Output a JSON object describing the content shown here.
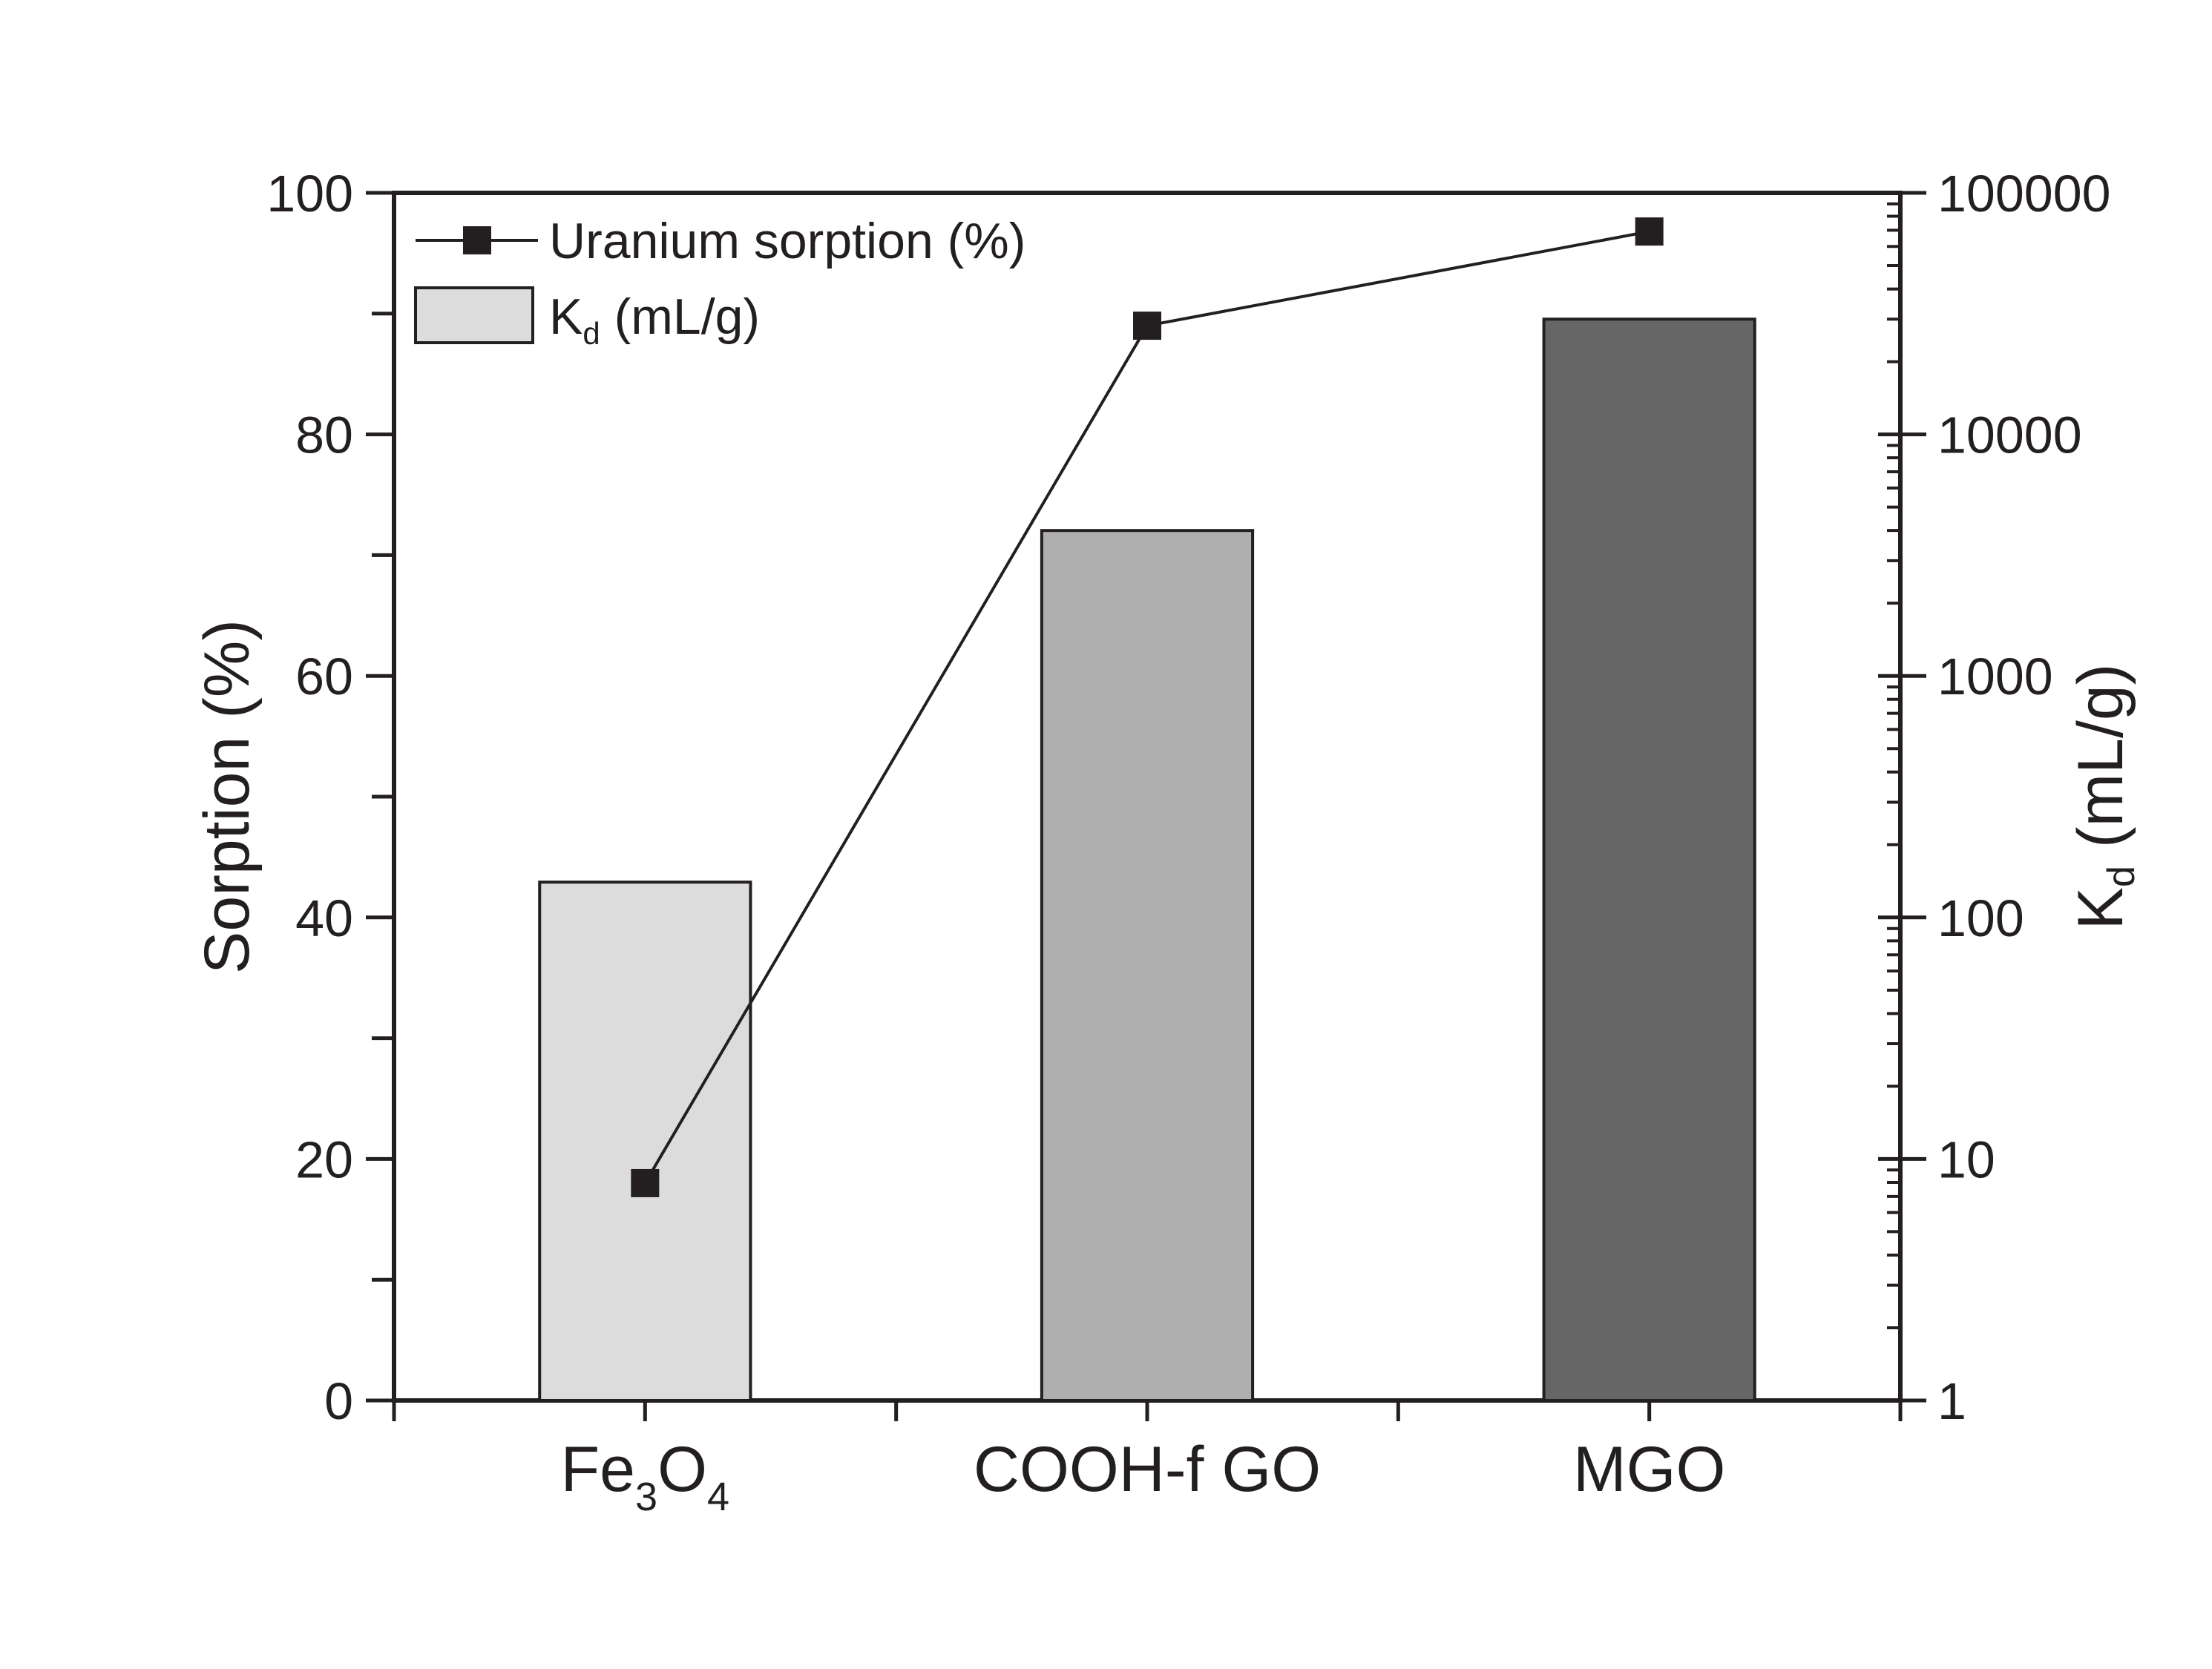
{
  "chart_data": {
    "type": "bar",
    "title": "",
    "xlabel": "",
    "categories": [
      {
        "base": "Fe",
        "sub1": "3",
        "mid": "O",
        "sub2": "4"
      },
      {
        "base": "COOH-f GO"
      },
      {
        "base": "MGO"
      }
    ],
    "series": [
      {
        "name": "K_d (mL/g)",
        "kind": "bar",
        "axis": "right",
        "values": [
          140,
          4000,
          30000
        ],
        "colors": [
          "#dcdcdc",
          "#afafaf",
          "#666666"
        ]
      },
      {
        "name": "Uranium sorption (%)",
        "kind": "line",
        "axis": "left",
        "marker": "square",
        "values": [
          18,
          89,
          96.8
        ]
      }
    ],
    "left_axis": {
      "label": "Sorption (%)",
      "range": [
        0,
        100
      ],
      "ticks": [
        "0",
        "20",
        "40",
        "60",
        "80",
        "100"
      ],
      "tick_values": [
        0,
        20,
        40,
        60,
        80,
        100
      ],
      "minor_step": 10
    },
    "right_axis": {
      "label_main": "K",
      "label_sub": "d",
      "label_rest": " (mL/g)",
      "scale": "log",
      "range": [
        1,
        100000
      ],
      "ticks": [
        "1",
        "10",
        "100",
        "1000",
        "10000",
        "100000"
      ],
      "tick_values": [
        1,
        10,
        100,
        1000,
        10000,
        100000
      ]
    },
    "legend": {
      "position": "top-left",
      "line_label": "Uranium sorption (%)",
      "bar_label_main": "K",
      "bar_label_sub": "d",
      "bar_label_rest": " (mL/g)"
    },
    "colors": {
      "axis": "#231f20",
      "line": "#231f20",
      "marker": "#231f20",
      "legend_swatch": "#dcdcdc"
    }
  }
}
